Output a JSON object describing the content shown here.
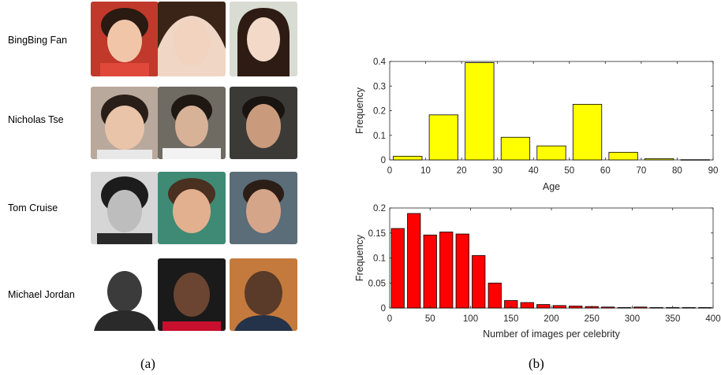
{
  "people": [
    {
      "name": "BingBing Fan"
    },
    {
      "name": "Nicholas Tse"
    },
    {
      "name": "Tom Cruise"
    },
    {
      "name": "Michael Jordan"
    }
  ],
  "panel_labels": {
    "a": "(a)",
    "b": "(b)"
  },
  "chart_data": [
    {
      "type": "bar",
      "xlabel": "Age",
      "ylabel": "Frequency",
      "color": "#ffff00",
      "xlim": [
        0,
        90
      ],
      "ylim": [
        0,
        0.4
      ],
      "xticks": [
        "0",
        "10",
        "20",
        "30",
        "40",
        "50",
        "60",
        "70",
        "80",
        "90"
      ],
      "yticks": [
        "0",
        "0.1",
        "0.2",
        "0.3",
        "0.4"
      ],
      "bar_width": 8,
      "x": [
        5,
        15,
        25,
        35,
        45,
        55,
        65,
        75,
        85
      ],
      "values": [
        0.015,
        0.183,
        0.395,
        0.092,
        0.057,
        0.226,
        0.031,
        0.005,
        0.001
      ]
    },
    {
      "type": "bar",
      "xlabel": "Number of images per celebrity",
      "ylabel": "Frequency",
      "color": "#ff0000",
      "xlim": [
        0,
        400
      ],
      "ylim": [
        0,
        0.2
      ],
      "xticks": [
        "0",
        "50",
        "100",
        "150",
        "200",
        "250",
        "300",
        "350",
        "400"
      ],
      "yticks": [
        "0",
        "0.05",
        "0.1",
        "0.15",
        "0.2"
      ],
      "bar_width": 16,
      "x": [
        10,
        30,
        50,
        70,
        90,
        110,
        130,
        150,
        170,
        190,
        210,
        230,
        250,
        270,
        290,
        310,
        330,
        350,
        370,
        390
      ],
      "values": [
        0.159,
        0.189,
        0.146,
        0.152,
        0.148,
        0.105,
        0.05,
        0.015,
        0.011,
        0.007,
        0.005,
        0.004,
        0.003,
        0.002,
        0.001,
        0.002,
        0.001,
        0.001,
        0.001,
        0.001
      ]
    }
  ]
}
